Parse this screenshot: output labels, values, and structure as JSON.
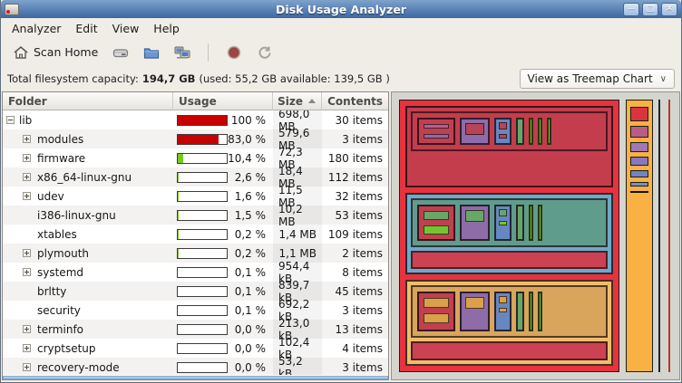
{
  "window": {
    "title": "Disk Usage Analyzer",
    "controls": {
      "minimize": "—",
      "maximize": "□",
      "close": "✕"
    }
  },
  "menu": {
    "items": [
      "Analyzer",
      "Edit",
      "View",
      "Help"
    ]
  },
  "toolbar": {
    "scan_home_label": "Scan Home"
  },
  "status": {
    "prefix": "Total filesystem capacity:",
    "capacity": "194,7 GB",
    "details": "(used: 55,2 GB available: 139,5 GB )"
  },
  "view_selector": {
    "label": "View as Treemap Chart",
    "chevron": "∨"
  },
  "table": {
    "columns": [
      "Folder",
      "Usage",
      "Size",
      "Contents"
    ],
    "sort_column": "Size",
    "rows": [
      {
        "folder": "lib",
        "depth": 0,
        "expander": "minus",
        "usage": "100 %",
        "bar_fill": 100,
        "bar_color": "#c80000",
        "size": "698,0 MB",
        "contents": "30 items"
      },
      {
        "folder": "modules",
        "depth": 1,
        "expander": "plus",
        "usage": "83,0 %",
        "bar_fill": 83,
        "bar_color": "#c80000",
        "size": "579,6 MB",
        "contents": "3 items"
      },
      {
        "folder": "firmware",
        "depth": 1,
        "expander": "plus",
        "usage": "10,4 %",
        "bar_fill": 10.4,
        "bar_color": "#76cb1e",
        "size": "72,3 MB",
        "contents": "180 items"
      },
      {
        "folder": "x86_64-linux-gnu",
        "depth": 1,
        "expander": "plus",
        "usage": "2,6 %",
        "bar_fill": 2.6,
        "bar_color": "#76cb1e",
        "size": "18,4 MB",
        "contents": "112 items"
      },
      {
        "folder": "udev",
        "depth": 1,
        "expander": "plus",
        "usage": "1,6 %",
        "bar_fill": 1.6,
        "bar_color": "#76cb1e",
        "size": "11,5 MB",
        "contents": "32 items"
      },
      {
        "folder": "i386-linux-gnu",
        "depth": 1,
        "expander": "none",
        "usage": "1,5 %",
        "bar_fill": 1.5,
        "bar_color": "#76cb1e",
        "size": "10,2 MB",
        "contents": "53 items"
      },
      {
        "folder": "xtables",
        "depth": 1,
        "expander": "none",
        "usage": "0,2 %",
        "bar_fill": 0.2,
        "bar_color": "#76cb1e",
        "size": "1,4 MB",
        "contents": "109 items"
      },
      {
        "folder": "plymouth",
        "depth": 1,
        "expander": "plus",
        "usage": "0,2 %",
        "bar_fill": 0.2,
        "bar_color": "#76cb1e",
        "size": "1,1 MB",
        "contents": "2 items"
      },
      {
        "folder": "systemd",
        "depth": 1,
        "expander": "plus",
        "usage": "0,1 %",
        "bar_fill": 0.1,
        "bar_color": "#76cb1e",
        "size": "954,4 kB",
        "contents": "8 items"
      },
      {
        "folder": "brltty",
        "depth": 1,
        "expander": "none",
        "usage": "0,1 %",
        "bar_fill": 0.1,
        "bar_color": "#76cb1e",
        "size": "839,7 kB",
        "contents": "45 items"
      },
      {
        "folder": "security",
        "depth": 1,
        "expander": "none",
        "usage": "0,1 %",
        "bar_fill": 0.1,
        "bar_color": "#76cb1e",
        "size": "692,2 kB",
        "contents": "3 items"
      },
      {
        "folder": "terminfo",
        "depth": 1,
        "expander": "plus",
        "usage": "0,0 %",
        "bar_fill": 0,
        "bar_color": "#76cb1e",
        "size": "213,0 kB",
        "contents": "13 items"
      },
      {
        "folder": "cryptsetup",
        "depth": 1,
        "expander": "plus",
        "usage": "0,0 %",
        "bar_fill": 0,
        "bar_color": "#76cb1e",
        "size": "102,4 kB",
        "contents": "4 items"
      },
      {
        "folder": "recovery-mode",
        "depth": 1,
        "expander": "plus",
        "usage": "0,0 %",
        "bar_fill": 0,
        "bar_color": "#76cb1e",
        "size": "53,2 kB",
        "contents": "3 items"
      }
    ]
  },
  "colors": {
    "titlebar_top": "#7da2cc",
    "titlebar_bottom": "#3c67a1",
    "chrome_bg": "#f0ede7",
    "tm_bg": "#d5d5d0",
    "tm_red": "#e6333d",
    "tm_crimson": "#c43d4d",
    "tm_crimson_strip": "#cc4252",
    "tm_blue_frame": "#6fa9c9",
    "tm_teal": "#5f9c8b",
    "tm_tan_frame": "#eebd6b",
    "tm_tan": "#d9a55c",
    "tm_box_crimson": "#c04050",
    "tm_purple": "#8d6ca8",
    "tm_blue_box": "#6787c0",
    "tm_bar_pink": "#b85f8a",
    "tm_bar_purple": "#9a68a2",
    "tm_bar_crimson": "#b84458",
    "tm_bar_green": "#68a766",
    "tm_bar_green2": "#74c631",
    "tm_bar_orange": "#dc9f4a",
    "tm_green_mid": "#69a56b",
    "tm_green_bright": "#7bc828",
    "tm_orange_col": "#f9b143",
    "tm_chip_red": "#d8353f",
    "tm_chip_pink": "#bb5c84",
    "tm_chip_lilac": "#a277b5",
    "tm_chip_purple": "#8a77c0",
    "tm_chip_blue": "#7184c4",
    "tm_chip_blue2": "#6d92c9",
    "tm_line_red": "#b23b27"
  }
}
